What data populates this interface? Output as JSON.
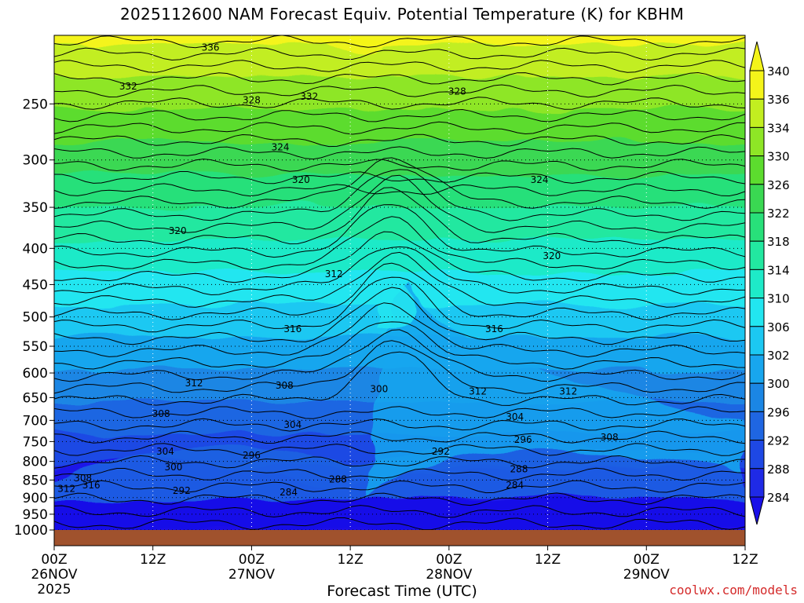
{
  "header": {
    "title": "2025112600 NAM Forecast Equiv. Potential Temperature (K) for KBHM"
  },
  "footer": {
    "xlabel": "Forecast Time (UTC)",
    "credit": "coolwx.com/models"
  },
  "chart_data": {
    "type": "heatmap",
    "title": "2025112600 NAM Forecast Equiv. Potential Temperature (K) for KBHM",
    "xlabel": "Forecast Time (UTC)",
    "ylabel": "",
    "x_ticks": [
      {
        "hour": 0,
        "time": "00Z",
        "date": "26NOV",
        "year": "2025"
      },
      {
        "hour": 12,
        "time": "12Z",
        "date": "",
        "year": ""
      },
      {
        "hour": 24,
        "time": "00Z",
        "date": "27NOV",
        "year": ""
      },
      {
        "hour": 36,
        "time": "12Z",
        "date": "",
        "year": ""
      },
      {
        "hour": 48,
        "time": "00Z",
        "date": "28NOV",
        "year": ""
      },
      {
        "hour": 60,
        "time": "12Z",
        "date": "",
        "year": ""
      },
      {
        "hour": 72,
        "time": "00Z",
        "date": "29NOV",
        "year": ""
      },
      {
        "hour": 84,
        "time": "12Z",
        "date": "",
        "year": ""
      }
    ],
    "xlim": [
      0,
      84
    ],
    "y_ticks": [
      250,
      300,
      350,
      400,
      450,
      500,
      550,
      600,
      650,
      700,
      750,
      800,
      850,
      900,
      950,
      1000
    ],
    "ylim": [
      1000,
      200
    ],
    "y_scale": "log",
    "grid": true,
    "colorbar": {
      "levels": [
        284,
        288,
        292,
        296,
        300,
        302,
        306,
        310,
        314,
        318,
        322,
        326,
        330,
        334,
        336,
        340
      ],
      "labels": [
        "284",
        "288",
        "292",
        "296",
        "300",
        "302",
        "306",
        "310",
        "314",
        "318",
        "322",
        "326",
        "330",
        "334",
        "336",
        "340"
      ],
      "colors": [
        "#1a10e8",
        "#1f2ae6",
        "#1e48e4",
        "#1f66e2",
        "#1b86e4",
        "#18a6ee",
        "#1cc8f2",
        "#22e6f0",
        "#1eeac8",
        "#22e8a0",
        "#28e07a",
        "#3ad852",
        "#5cdc2e",
        "#8ee626",
        "#c2ee20",
        "#f4f41a"
      ],
      "extend": "both"
    },
    "contour_labels": [
      {
        "text": "336",
        "hour": 19,
        "p": 208
      },
      {
        "text": "332",
        "hour": 9,
        "p": 236
      },
      {
        "text": "328",
        "hour": 24,
        "p": 247
      },
      {
        "text": "332",
        "hour": 31,
        "p": 244
      },
      {
        "text": "328",
        "hour": 49,
        "p": 240
      },
      {
        "text": "324",
        "hour": 27.5,
        "p": 288
      },
      {
        "text": "320",
        "hour": 30,
        "p": 320
      },
      {
        "text": "324",
        "hour": 59,
        "p": 320
      },
      {
        "text": "320",
        "hour": 15,
        "p": 378
      },
      {
        "text": "312",
        "hour": 34,
        "p": 435
      },
      {
        "text": "320",
        "hour": 60.5,
        "p": 410
      },
      {
        "text": "316",
        "hour": 29,
        "p": 520
      },
      {
        "text": "316",
        "hour": 53.5,
        "p": 520
      },
      {
        "text": "312",
        "hour": 17,
        "p": 620
      },
      {
        "text": "308",
        "hour": 28,
        "p": 625
      },
      {
        "text": "300",
        "hour": 39.5,
        "p": 632
      },
      {
        "text": "312",
        "hour": 51.5,
        "p": 637
      },
      {
        "text": "312",
        "hour": 62.5,
        "p": 637
      },
      {
        "text": "308",
        "hour": 13,
        "p": 685
      },
      {
        "text": "304",
        "hour": 29,
        "p": 710
      },
      {
        "text": "304",
        "hour": 56,
        "p": 692
      },
      {
        "text": "296",
        "hour": 57,
        "p": 745
      },
      {
        "text": "308",
        "hour": 67.5,
        "p": 740
      },
      {
        "text": "304",
        "hour": 13.5,
        "p": 775
      },
      {
        "text": "296",
        "hour": 24,
        "p": 785
      },
      {
        "text": "292",
        "hour": 47,
        "p": 775
      },
      {
        "text": "300",
        "hour": 14.5,
        "p": 815
      },
      {
        "text": "288",
        "hour": 56.5,
        "p": 820
      },
      {
        "text": "288",
        "hour": 34.5,
        "p": 848
      },
      {
        "text": "308",
        "hour": 3.5,
        "p": 845
      },
      {
        "text": "316",
        "hour": 4.5,
        "p": 865
      },
      {
        "text": "312",
        "hour": 1.5,
        "p": 875
      },
      {
        "text": "292",
        "hour": 15.5,
        "p": 880
      },
      {
        "text": "284",
        "hour": 28.5,
        "p": 885
      },
      {
        "text": "284",
        "hour": 56,
        "p": 865
      }
    ]
  }
}
